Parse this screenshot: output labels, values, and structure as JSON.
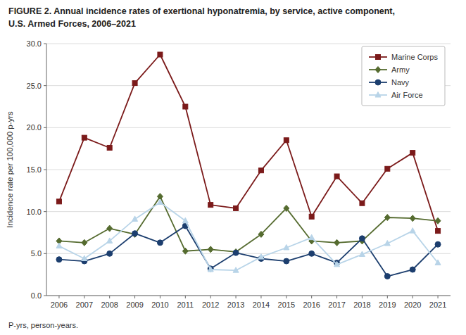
{
  "chart_data": {
    "type": "line",
    "title": "FIGURE 2. Annual incidence rates of exertional hyponatremia, by service, active component,",
    "subtitle": "U.S. Armed Forces, 2006–2021",
    "y_label": "Incidence rate per 100,000 p-yrs",
    "annotations": [
      "P-yrs, person-years."
    ],
    "x": [
      2006,
      2007,
      2008,
      2009,
      2010,
      2011,
      2012,
      2013,
      2014,
      2015,
      2016,
      2017,
      2018,
      2019,
      2020,
      2021
    ],
    "series": [
      {
        "name": "Marine Corps",
        "color": "#7B1A1A",
        "marker": "square",
        "values": [
          11.2,
          18.8,
          17.6,
          25.3,
          28.7,
          22.5,
          10.8,
          10.4,
          14.9,
          18.5,
          9.4,
          14.2,
          11.0,
          15.1,
          17.0,
          7.7
        ]
      },
      {
        "name": "Army",
        "color": "#556B2F",
        "marker": "diamond",
        "values": [
          6.5,
          6.3,
          8.0,
          7.3,
          11.8,
          5.3,
          5.5,
          5.2,
          7.3,
          10.4,
          6.5,
          6.3,
          6.5,
          9.3,
          9.2,
          8.9
        ]
      },
      {
        "name": "Navy",
        "color": "#1C3E6E",
        "marker": "circle",
        "values": [
          4.3,
          4.1,
          5.0,
          7.4,
          6.3,
          8.3,
          3.2,
          5.1,
          4.4,
          4.1,
          5.0,
          3.9,
          6.8,
          2.3,
          3.1,
          6.1
        ]
      },
      {
        "name": "Air Force",
        "color": "#B8D4E8",
        "marker": "triangle",
        "values": [
          5.9,
          4.4,
          6.5,
          9.1,
          11.1,
          8.9,
          3.1,
          3.0,
          4.6,
          5.7,
          6.9,
          3.7,
          4.9,
          6.2,
          7.7,
          3.9
        ]
      }
    ],
    "xlim": [
      2005.5,
      2021.5
    ],
    "xticks": [
      2006,
      2007,
      2008,
      2009,
      2010,
      2011,
      2012,
      2013,
      2014,
      2015,
      2016,
      2017,
      2018,
      2019,
      2020,
      2021
    ],
    "ylim": [
      0,
      30.0
    ],
    "yticks": [
      {
        "value": 0.0,
        "label": "0.0"
      },
      {
        "value": 5.0,
        "label": "5.0"
      },
      {
        "value": 10.0,
        "label": "10.0"
      },
      {
        "value": 15.0,
        "label": "15.0"
      },
      {
        "value": 20.0,
        "label": "20.0"
      },
      {
        "value": 25.0,
        "label": "25.0"
      },
      {
        "value": 30.0,
        "label": "30.0"
      }
    ],
    "grid": true,
    "legend": "upper right"
  }
}
